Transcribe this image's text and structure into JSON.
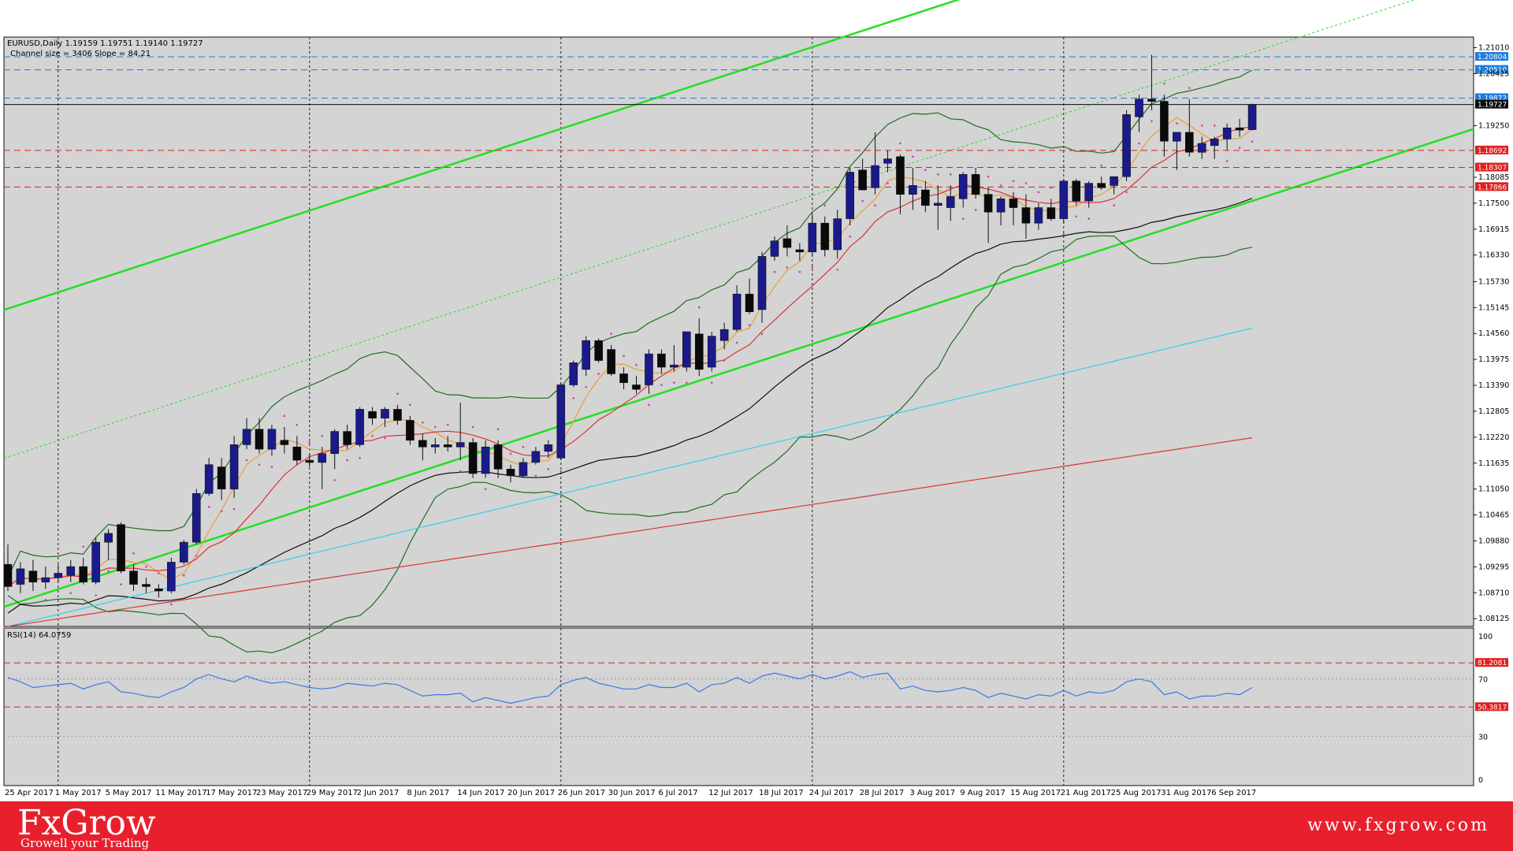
{
  "chart_data": {
    "type": "candlestick",
    "symbol_header": "EURUSD,Daily  1.19159 1.19751 1.19140 1.19727",
    "channel_info": "Channel size = 3406 Slope = 84.21",
    "y_ticks": [
      "1.21010",
      "1.20425",
      "1.19250",
      "1.18085",
      "1.17500",
      "1.16915",
      "1.16330",
      "1.15730",
      "1.15145",
      "1.14560",
      "1.13975",
      "1.13390",
      "1.12805",
      "1.12220",
      "1.11635",
      "1.11050",
      "1.10465",
      "1.09880",
      "1.09295",
      "1.08710",
      "1.08125"
    ],
    "ylim": [
      1.0795,
      1.2125
    ],
    "x_labels": [
      "25 Apr 2017",
      "1 May 2017",
      "5 May 2017",
      "11 May 2017",
      "17 May 2017",
      "23 May 2017",
      "29 May 2017",
      "2 Jun 2017",
      "8 Jun 2017",
      "14 Jun 2017",
      "20 Jun 2017",
      "26 Jun 2017",
      "30 Jun 2017",
      "6 Jul 2017",
      "12 Jul 2017",
      "18 Jul 2017",
      "24 Jul 2017",
      "28 Jul 2017",
      "3 Aug 2017",
      "9 Aug 2017",
      "15 Aug 2017",
      "21 Aug 2017",
      "25 Aug 2017",
      "31 Aug 2017",
      "6 Sep 2017"
    ],
    "candles": [
      {
        "o": 1.0935,
        "h": 1.098,
        "l": 1.0875,
        "c": 1.0885
      },
      {
        "o": 1.089,
        "h": 1.094,
        "l": 1.087,
        "c": 1.0925
      },
      {
        "o": 1.092,
        "h": 1.0945,
        "l": 1.0875,
        "c": 1.0895
      },
      {
        "o": 1.0895,
        "h": 1.093,
        "l": 1.088,
        "c": 1.0905
      },
      {
        "o": 1.0905,
        "h": 1.0935,
        "l": 1.0895,
        "c": 1.0915
      },
      {
        "o": 1.091,
        "h": 1.0945,
        "l": 1.0895,
        "c": 1.093
      },
      {
        "o": 1.093,
        "h": 1.095,
        "l": 1.089,
        "c": 1.0895
      },
      {
        "o": 1.0895,
        "h": 1.0995,
        "l": 1.089,
        "c": 1.0985
      },
      {
        "o": 1.0985,
        "h": 1.1015,
        "l": 1.0945,
        "c": 1.1005
      },
      {
        "o": 1.1025,
        "h": 1.103,
        "l": 1.0915,
        "c": 1.092
      },
      {
        "o": 1.092,
        "h": 1.0935,
        "l": 1.0875,
        "c": 1.089
      },
      {
        "o": 1.089,
        "h": 1.0905,
        "l": 1.087,
        "c": 1.0885
      },
      {
        "o": 1.088,
        "h": 1.089,
        "l": 1.086,
        "c": 1.0875
      },
      {
        "o": 1.0875,
        "h": 1.095,
        "l": 1.087,
        "c": 1.094
      },
      {
        "o": 1.094,
        "h": 1.099,
        "l": 1.0935,
        "c": 1.0985
      },
      {
        "o": 1.0985,
        "h": 1.1105,
        "l": 1.098,
        "c": 1.1095
      },
      {
        "o": 1.1095,
        "h": 1.1175,
        "l": 1.109,
        "c": 1.116
      },
      {
        "o": 1.1155,
        "h": 1.1175,
        "l": 1.108,
        "c": 1.1105
      },
      {
        "o": 1.1105,
        "h": 1.1225,
        "l": 1.1085,
        "c": 1.1205
      },
      {
        "o": 1.1205,
        "h": 1.1265,
        "l": 1.1195,
        "c": 1.124
      },
      {
        "o": 1.124,
        "h": 1.1265,
        "l": 1.1185,
        "c": 1.1195
      },
      {
        "o": 1.1195,
        "h": 1.125,
        "l": 1.118,
        "c": 1.124
      },
      {
        "o": 1.1215,
        "h": 1.1245,
        "l": 1.1185,
        "c": 1.1205
      },
      {
        "o": 1.12,
        "h": 1.1225,
        "l": 1.116,
        "c": 1.117
      },
      {
        "o": 1.117,
        "h": 1.1185,
        "l": 1.1155,
        "c": 1.1165
      },
      {
        "o": 1.1165,
        "h": 1.12,
        "l": 1.1105,
        "c": 1.1185
      },
      {
        "o": 1.1185,
        "h": 1.124,
        "l": 1.115,
        "c": 1.1235
      },
      {
        "o": 1.1235,
        "h": 1.125,
        "l": 1.1195,
        "c": 1.1205
      },
      {
        "o": 1.1205,
        "h": 1.129,
        "l": 1.12,
        "c": 1.1285
      },
      {
        "o": 1.128,
        "h": 1.129,
        "l": 1.125,
        "c": 1.1265
      },
      {
        "o": 1.1265,
        "h": 1.129,
        "l": 1.1245,
        "c": 1.1285
      },
      {
        "o": 1.1285,
        "h": 1.1295,
        "l": 1.125,
        "c": 1.126
      },
      {
        "o": 1.126,
        "h": 1.127,
        "l": 1.1205,
        "c": 1.1215
      },
      {
        "o": 1.1215,
        "h": 1.123,
        "l": 1.117,
        "c": 1.12
      },
      {
        "o": 1.12,
        "h": 1.122,
        "l": 1.1185,
        "c": 1.1205
      },
      {
        "o": 1.1205,
        "h": 1.1225,
        "l": 1.119,
        "c": 1.12
      },
      {
        "o": 1.12,
        "h": 1.13,
        "l": 1.117,
        "c": 1.121
      },
      {
        "o": 1.121,
        "h": 1.122,
        "l": 1.113,
        "c": 1.114
      },
      {
        "o": 1.114,
        "h": 1.1215,
        "l": 1.113,
        "c": 1.12
      },
      {
        "o": 1.1205,
        "h": 1.1215,
        "l": 1.113,
        "c": 1.115
      },
      {
        "o": 1.115,
        "h": 1.116,
        "l": 1.112,
        "c": 1.1135
      },
      {
        "o": 1.1135,
        "h": 1.1175,
        "l": 1.113,
        "c": 1.1165
      },
      {
        "o": 1.1165,
        "h": 1.12,
        "l": 1.116,
        "c": 1.119
      },
      {
        "o": 1.119,
        "h": 1.1215,
        "l": 1.1175,
        "c": 1.1205
      },
      {
        "o": 1.1175,
        "h": 1.1345,
        "l": 1.117,
        "c": 1.134
      },
      {
        "o": 1.134,
        "h": 1.1395,
        "l": 1.1335,
        "c": 1.139
      },
      {
        "o": 1.1375,
        "h": 1.145,
        "l": 1.136,
        "c": 1.144
      },
      {
        "o": 1.144,
        "h": 1.1445,
        "l": 1.139,
        "c": 1.1395
      },
      {
        "o": 1.142,
        "h": 1.143,
        "l": 1.136,
        "c": 1.1365
      },
      {
        "o": 1.1365,
        "h": 1.138,
        "l": 1.133,
        "c": 1.1345
      },
      {
        "o": 1.134,
        "h": 1.136,
        "l": 1.132,
        "c": 1.133
      },
      {
        "o": 1.134,
        "h": 1.142,
        "l": 1.132,
        "c": 1.141
      },
      {
        "o": 1.141,
        "h": 1.142,
        "l": 1.1365,
        "c": 1.138
      },
      {
        "o": 1.138,
        "h": 1.143,
        "l": 1.137,
        "c": 1.1385
      },
      {
        "o": 1.138,
        "h": 1.146,
        "l": 1.137,
        "c": 1.146
      },
      {
        "o": 1.1455,
        "h": 1.149,
        "l": 1.136,
        "c": 1.1375
      },
      {
        "o": 1.138,
        "h": 1.146,
        "l": 1.137,
        "c": 1.145
      },
      {
        "o": 1.144,
        "h": 1.148,
        "l": 1.142,
        "c": 1.1465
      },
      {
        "o": 1.1465,
        "h": 1.1565,
        "l": 1.146,
        "c": 1.1545
      },
      {
        "o": 1.1545,
        "h": 1.158,
        "l": 1.15,
        "c": 1.1505
      },
      {
        "o": 1.151,
        "h": 1.164,
        "l": 1.148,
        "c": 1.163
      },
      {
        "o": 1.163,
        "h": 1.1675,
        "l": 1.162,
        "c": 1.1665
      },
      {
        "o": 1.167,
        "h": 1.17,
        "l": 1.163,
        "c": 1.165
      },
      {
        "o": 1.1645,
        "h": 1.166,
        "l": 1.162,
        "c": 1.164
      },
      {
        "o": 1.164,
        "h": 1.1725,
        "l": 1.163,
        "c": 1.1705
      },
      {
        "o": 1.1705,
        "h": 1.172,
        "l": 1.163,
        "c": 1.1645
      },
      {
        "o": 1.1645,
        "h": 1.1735,
        "l": 1.1625,
        "c": 1.1715
      },
      {
        "o": 1.1715,
        "h": 1.183,
        "l": 1.17,
        "c": 1.182
      },
      {
        "o": 1.1825,
        "h": 1.185,
        "l": 1.178,
        "c": 1.178
      },
      {
        "o": 1.1785,
        "h": 1.191,
        "l": 1.177,
        "c": 1.1835
      },
      {
        "o": 1.184,
        "h": 1.187,
        "l": 1.182,
        "c": 1.185
      },
      {
        "o": 1.1855,
        "h": 1.186,
        "l": 1.1725,
        "c": 1.177
      },
      {
        "o": 1.177,
        "h": 1.183,
        "l": 1.1735,
        "c": 1.179
      },
      {
        "o": 1.178,
        "h": 1.18,
        "l": 1.173,
        "c": 1.1745
      },
      {
        "o": 1.1745,
        "h": 1.179,
        "l": 1.169,
        "c": 1.175
      },
      {
        "o": 1.174,
        "h": 1.179,
        "l": 1.171,
        "c": 1.1765
      },
      {
        "o": 1.176,
        "h": 1.182,
        "l": 1.174,
        "c": 1.1815
      },
      {
        "o": 1.1815,
        "h": 1.183,
        "l": 1.176,
        "c": 1.177
      },
      {
        "o": 1.177,
        "h": 1.1785,
        "l": 1.166,
        "c": 1.173
      },
      {
        "o": 1.173,
        "h": 1.1765,
        "l": 1.17,
        "c": 1.176
      },
      {
        "o": 1.176,
        "h": 1.1775,
        "l": 1.17,
        "c": 1.174
      },
      {
        "o": 1.174,
        "h": 1.177,
        "l": 1.167,
        "c": 1.1705
      },
      {
        "o": 1.1705,
        "h": 1.175,
        "l": 1.169,
        "c": 1.174
      },
      {
        "o": 1.174,
        "h": 1.176,
        "l": 1.171,
        "c": 1.1715
      },
      {
        "o": 1.1715,
        "h": 1.1805,
        "l": 1.1705,
        "c": 1.18
      },
      {
        "o": 1.18,
        "h": 1.1805,
        "l": 1.1745,
        "c": 1.1755
      },
      {
        "o": 1.1755,
        "h": 1.18,
        "l": 1.174,
        "c": 1.1795
      },
      {
        "o": 1.1795,
        "h": 1.181,
        "l": 1.178,
        "c": 1.1785
      },
      {
        "o": 1.179,
        "h": 1.181,
        "l": 1.177,
        "c": 1.181
      },
      {
        "o": 1.181,
        "h": 1.196,
        "l": 1.18,
        "c": 1.195
      },
      {
        "o": 1.1945,
        "h": 1.1995,
        "l": 1.191,
        "c": 1.1985
      },
      {
        "o": 1.1985,
        "h": 1.2085,
        "l": 1.196,
        "c": 1.198
      },
      {
        "o": 1.198,
        "h": 1.1995,
        "l": 1.1855,
        "c": 1.189
      },
      {
        "o": 1.189,
        "h": 1.1905,
        "l": 1.1825,
        "c": 1.191
      },
      {
        "o": 1.191,
        "h": 1.1985,
        "l": 1.1855,
        "c": 1.1865
      },
      {
        "o": 1.1865,
        "h": 1.19,
        "l": 1.185,
        "c": 1.1885
      },
      {
        "o": 1.188,
        "h": 1.19,
        "l": 1.185,
        "c": 1.1895
      },
      {
        "o": 1.1895,
        "h": 1.193,
        "l": 1.187,
        "c": 1.192
      },
      {
        "o": 1.192,
        "h": 1.194,
        "l": 1.19,
        "c": 1.1915
      },
      {
        "o": 1.1916,
        "h": 1.1975,
        "l": 1.1914,
        "c": 1.1973
      }
    ],
    "price_levels": [
      {
        "value": 1.20804,
        "label": "1.20804",
        "color": "#1e7be0",
        "style": "dash"
      },
      {
        "value": 1.2051,
        "label": "1.20510",
        "color": "#1e7be0",
        "style": "dash"
      },
      {
        "value": 1.19872,
        "label": "1.19872",
        "color": "#1e7be0",
        "style": "dash"
      },
      {
        "value": 1.19727,
        "label": "1.19727",
        "color": "#0a0a0a",
        "style": "solid"
      },
      {
        "value": 1.18692,
        "label": "1.18692",
        "color": "#e02020",
        "style": "dash"
      },
      {
        "value": 1.18307,
        "label": "1.18307",
        "color": "#e02020",
        "style": "dash"
      },
      {
        "value": 1.17866,
        "label": "1.17866",
        "color": "#e02020",
        "style": "dash"
      }
    ],
    "channel": {
      "mid_start": 1.1177,
      "mid_end": 1.209,
      "half_width": 0.0335
    },
    "rsi": {
      "label": "RSI(14) 64.0759",
      "levels": [
        {
          "value": 81.2081,
          "label": "81.2081"
        },
        {
          "value": 50.3817,
          "label": "50.3817"
        }
      ],
      "ticks": [
        "100",
        "70",
        "30",
        "0"
      ],
      "values": [
        71,
        68,
        64,
        65,
        66,
        67,
        63,
        66,
        68,
        61,
        60,
        58,
        57,
        61,
        64,
        70,
        73,
        70,
        68,
        72,
        69,
        67,
        68,
        66,
        64,
        63,
        64,
        67,
        66,
        65,
        67,
        66,
        62,
        58,
        59,
        59,
        60,
        54,
        57,
        55,
        53,
        55,
        57,
        58,
        66,
        69,
        71,
        67,
        65,
        63,
        63,
        66,
        64,
        64,
        67,
        61,
        66,
        67,
        71,
        67,
        72,
        74,
        72,
        70,
        73,
        70,
        72,
        75,
        71,
        73,
        74,
        63,
        65,
        62,
        61,
        62,
        64,
        62,
        57,
        60,
        58,
        56,
        59,
        58,
        62,
        58,
        61,
        60,
        62,
        68,
        70,
        68,
        59,
        61,
        56,
        58,
        58,
        60,
        59,
        64
      ]
    },
    "colors": {
      "background": "#d4d4d4",
      "bull": "#1a1a8c",
      "bear": "#0a0a0a",
      "channel": "#22e022",
      "bollinger": "#1f6e1f",
      "ma_orange": "#e8a030",
      "ma_red": "#e03030",
      "ma_black": "#101010",
      "ma_cyan": "#30d0f0",
      "ma_red_slow": "#d83838",
      "sar": "#d040a0",
      "rsi_line": "#3a7ae0"
    }
  },
  "brand": {
    "logo": "FxGrow",
    "tagline": "Growell your Trading",
    "url": "www.fxgrow.com"
  }
}
